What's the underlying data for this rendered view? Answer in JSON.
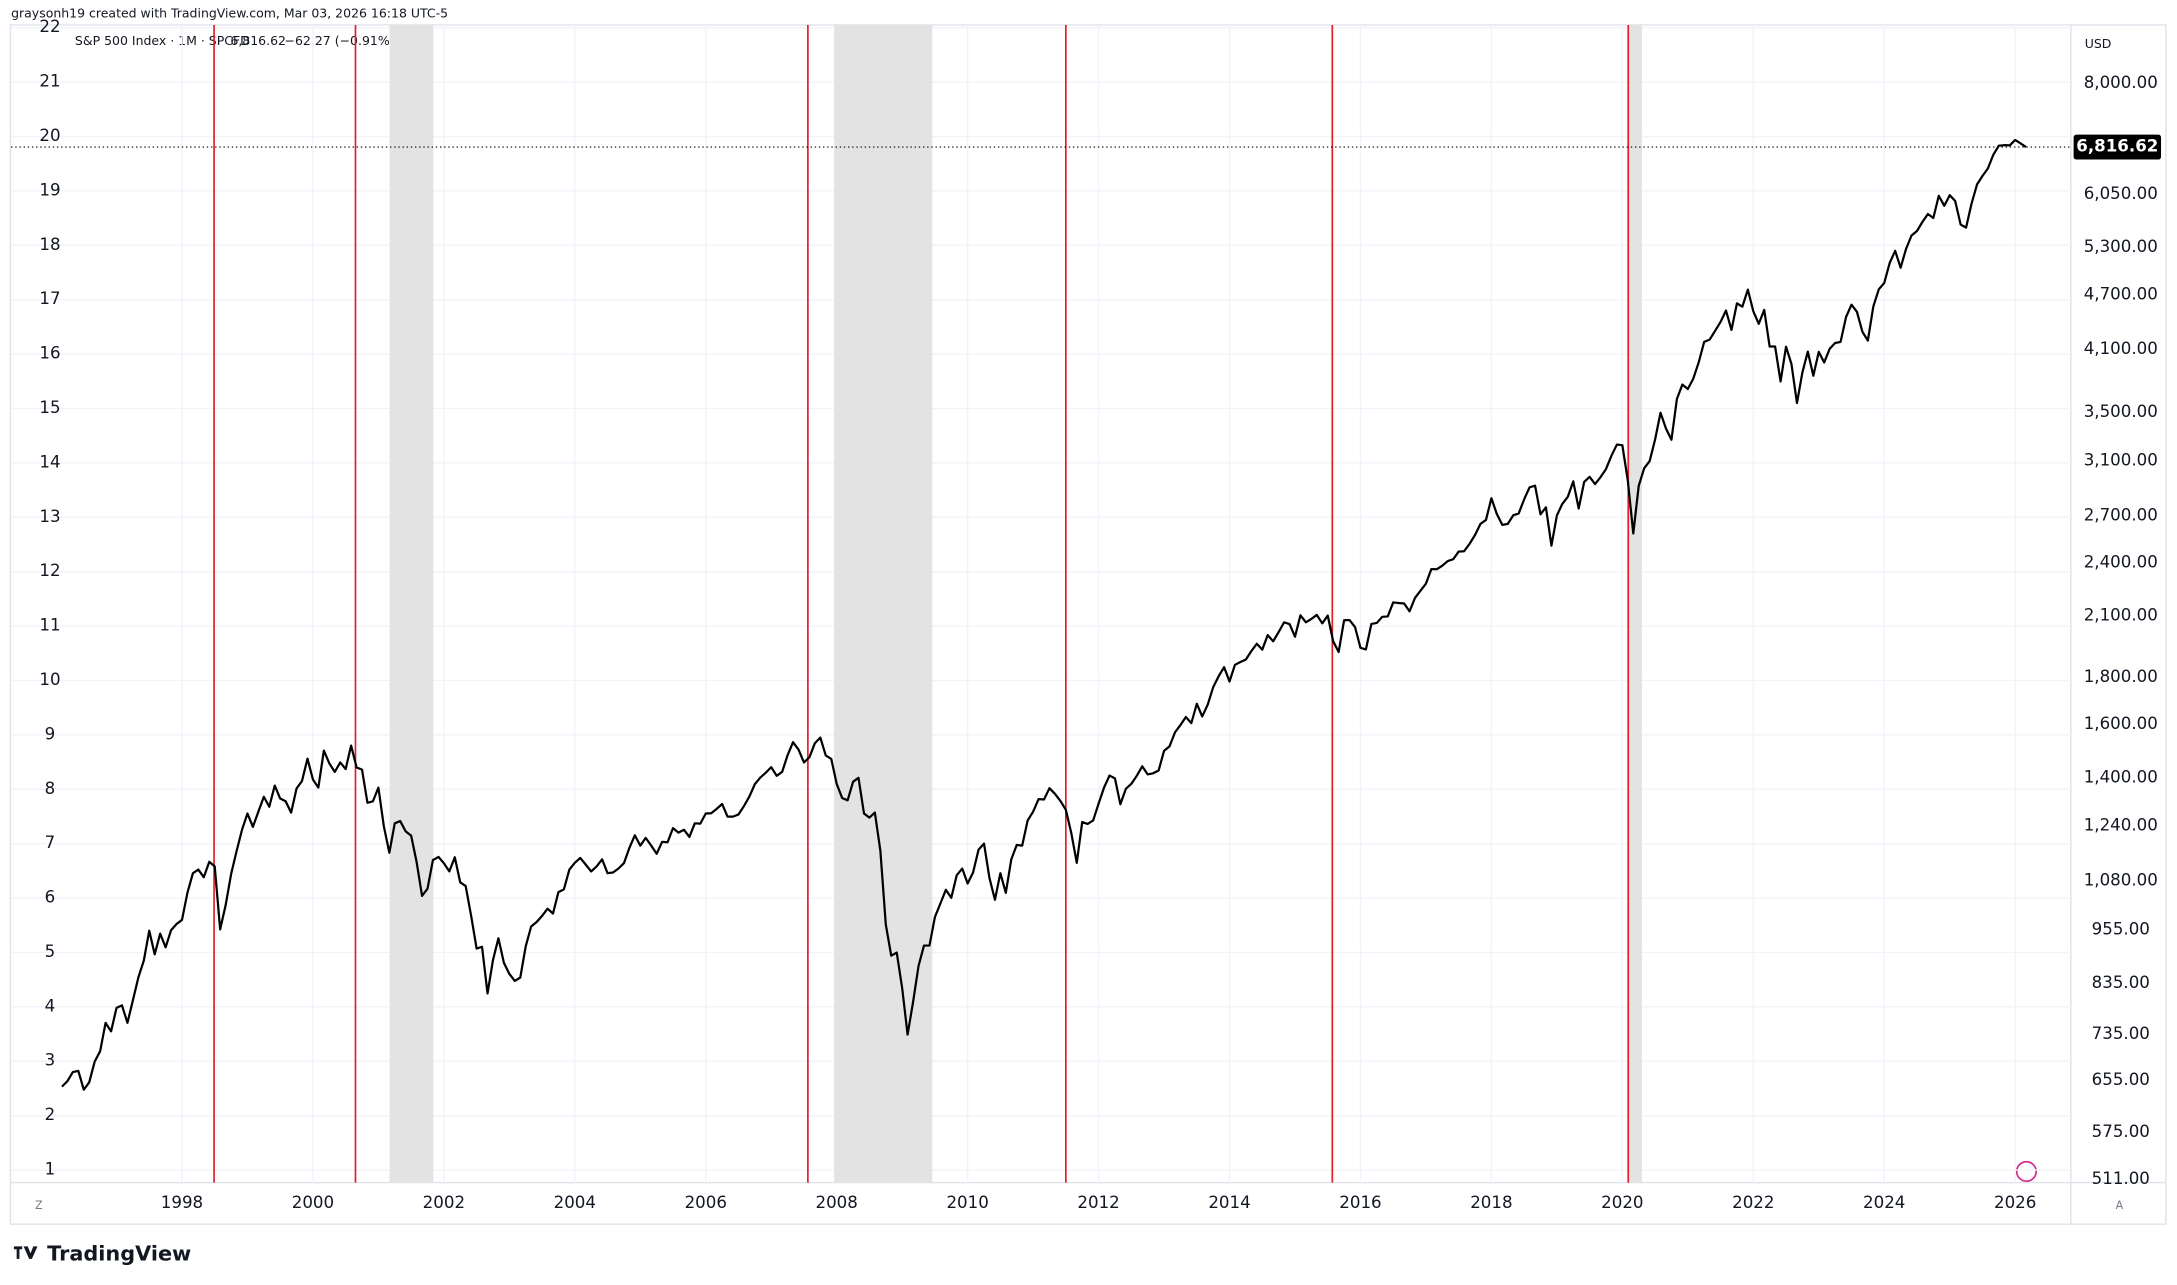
{
  "header": "graysonh19 created with TradingView.com, Mar 03, 2026 16:18 UTC-5",
  "legend": {
    "symbol": "S&P 500 Index · 1M · SPCFD",
    "price": "6,816.62",
    "change": "−62.27 (−0.91%)"
  },
  "currency": "USD",
  "brand": "TradingView",
  "chart_data": {
    "type": "line",
    "xlim": [
      1995.39,
      2026.85
    ],
    "xticks": [
      1998,
      2000,
      2002,
      2004,
      2006,
      2008,
      2010,
      2012,
      2014,
      2016,
      2018,
      2020,
      2022,
      2024,
      2026
    ],
    "ylim": [
      0.77,
      22.05
    ],
    "yticks": [
      1,
      2,
      3,
      4,
      5,
      6,
      7,
      8,
      9,
      10,
      11,
      12,
      13,
      14,
      15,
      16,
      17,
      18,
      19,
      20,
      21,
      22
    ],
    "y2lim": [
      507,
      9260
    ],
    "log_scale": true,
    "grid": true,
    "y2ticks": [
      {
        "value": 511,
        "label": "511.00"
      },
      {
        "value": 575,
        "label": "575.00"
      },
      {
        "value": 655,
        "label": "655.00"
      },
      {
        "value": 735,
        "label": "735.00"
      },
      {
        "value": 835,
        "label": "835.00"
      },
      {
        "value": 955,
        "label": "955.00"
      },
      {
        "value": 1080,
        "label": "1,080.00"
      },
      {
        "value": 1240,
        "label": "1,240.00"
      },
      {
        "value": 1400,
        "label": "1,400.00"
      },
      {
        "value": 1600,
        "label": "1,600.00"
      },
      {
        "value": 1800,
        "label": "1,800.00"
      },
      {
        "value": 2100,
        "label": "2,100.00"
      },
      {
        "value": 2400,
        "label": "2,400.00"
      },
      {
        "value": 2700,
        "label": "2,700.00"
      },
      {
        "value": 3100,
        "label": "3,100.00"
      },
      {
        "value": 3500,
        "label": "3,500.00"
      },
      {
        "value": 4100,
        "label": "4,100.00"
      },
      {
        "value": 4700,
        "label": "4,700.00"
      },
      {
        "value": 5300,
        "label": "5,300.00"
      },
      {
        "value": 6050,
        "label": "6,050.00"
      },
      {
        "value": 8000,
        "label": "8,000.00"
      }
    ],
    "price_line": {
      "value": 6816.62,
      "label": "6,816.62",
      "color": "#000000"
    },
    "vlines": {
      "color": "#e31b23",
      "x": [
        1998.49,
        2000.65,
        2007.56,
        2011.5,
        2015.57,
        2020.09
      ]
    },
    "shaded": {
      "color": "#e3e3e3",
      "spans": [
        [
          2001.17,
          2001.84
        ],
        [
          2007.96,
          2009.46
        ],
        [
          2020.09,
          2020.3
        ]
      ]
    },
    "x": [
      1996.167,
      1996.25,
      1996.333,
      1996.417,
      1996.5,
      1996.583,
      1996.667,
      1996.75,
      1996.833,
      1996.917,
      1997,
      1997.083,
      1997.167,
      1997.25,
      1997.333,
      1997.417,
      1997.5,
      1997.583,
      1997.667,
      1997.75,
      1997.833,
      1997.917,
      1998,
      1998.083,
      1998.167,
      1998.25,
      1998.333,
      1998.417,
      1998.5,
      1998.583,
      1998.667,
      1998.75,
      1998.833,
      1998.917,
      1999,
      1999.083,
      1999.167,
      1999.25,
      1999.333,
      1999.417,
      1999.5,
      1999.583,
      1999.667,
      1999.75,
      1999.833,
      1999.917,
      2000,
      2000.083,
      2000.167,
      2000.25,
      2000.333,
      2000.417,
      2000.5,
      2000.583,
      2000.667,
      2000.75,
      2000.833,
      2000.917,
      2001,
      2001.083,
      2001.167,
      2001.25,
      2001.333,
      2001.417,
      2001.5,
      2001.583,
      2001.667,
      2001.75,
      2001.833,
      2001.917,
      2002,
      2002.083,
      2002.167,
      2002.25,
      2002.333,
      2002.417,
      2002.5,
      2002.583,
      2002.667,
      2002.75,
      2002.833,
      2002.917,
      2003,
      2003.083,
      2003.167,
      2003.25,
      2003.333,
      2003.417,
      2003.5,
      2003.583,
      2003.667,
      2003.75,
      2003.833,
      2003.917,
      2004,
      2004.083,
      2004.167,
      2004.25,
      2004.333,
      2004.417,
      2004.5,
      2004.583,
      2004.667,
      2004.75,
      2004.833,
      2004.917,
      2005,
      2005.083,
      2005.167,
      2005.25,
      2005.333,
      2005.417,
      2005.5,
      2005.583,
      2005.667,
      2005.75,
      2005.833,
      2005.917,
      2006,
      2006.083,
      2006.167,
      2006.25,
      2006.333,
      2006.417,
      2006.5,
      2006.583,
      2006.667,
      2006.75,
      2006.833,
      2006.917,
      2007,
      2007.083,
      2007.167,
      2007.25,
      2007.333,
      2007.417,
      2007.5,
      2007.583,
      2007.667,
      2007.75,
      2007.833,
      2007.917,
      2008,
      2008.083,
      2008.167,
      2008.25,
      2008.333,
      2008.417,
      2008.5,
      2008.583,
      2008.667,
      2008.75,
      2008.833,
      2008.917,
      2009,
      2009.083,
      2009.167,
      2009.25,
      2009.333,
      2009.417,
      2009.5,
      2009.583,
      2009.667,
      2009.75,
      2009.833,
      2009.917,
      2010,
      2010.083,
      2010.167,
      2010.25,
      2010.333,
      2010.417,
      2010.5,
      2010.583,
      2010.667,
      2010.75,
      2010.833,
      2010.917,
      2011,
      2011.083,
      2011.167,
      2011.25,
      2011.333,
      2011.417,
      2011.5,
      2011.583,
      2011.667,
      2011.75,
      2011.833,
      2011.917,
      2012,
      2012.083,
      2012.167,
      2012.25,
      2012.333,
      2012.417,
      2012.5,
      2012.583,
      2012.667,
      2012.75,
      2012.833,
      2012.917,
      2013,
      2013.083,
      2013.167,
      2013.25,
      2013.333,
      2013.417,
      2013.5,
      2013.583,
      2013.667,
      2013.75,
      2013.833,
      2013.917,
      2014,
      2014.083,
      2014.167,
      2014.25,
      2014.333,
      2014.417,
      2014.5,
      2014.583,
      2014.667,
      2014.75,
      2014.833,
      2014.917,
      2015,
      2015.083,
      2015.167,
      2015.25,
      2015.333,
      2015.417,
      2015.5,
      2015.583,
      2015.667,
      2015.75,
      2015.833,
      2015.917,
      2016,
      2016.083,
      2016.167,
      2016.25,
      2016.333,
      2016.417,
      2016.5,
      2016.583,
      2016.667,
      2016.75,
      2016.833,
      2016.917,
      2017,
      2017.083,
      2017.167,
      2017.25,
      2017.333,
      2017.417,
      2017.5,
      2017.583,
      2017.667,
      2017.75,
      2017.833,
      2017.917,
      2018,
      2018.083,
      2018.167,
      2018.25,
      2018.333,
      2018.417,
      2018.5,
      2018.583,
      2018.667,
      2018.75,
      2018.833,
      2018.917,
      2019,
      2019.083,
      2019.167,
      2019.25,
      2019.333,
      2019.417,
      2019.5,
      2019.583,
      2019.667,
      2019.75,
      2019.833,
      2019.917,
      2020,
      2020.083,
      2020.167,
      2020.25,
      2020.333,
      2020.417,
      2020.5,
      2020.583,
      2020.667,
      2020.75,
      2020.833,
      2020.917,
      2021,
      2021.083,
      2021.167,
      2021.25,
      2021.333,
      2021.417,
      2021.5,
      2021.583,
      2021.667,
      2021.75,
      2021.833,
      2021.917,
      2022,
      2022.083,
      2022.167,
      2022.25,
      2022.333,
      2022.417,
      2022.5,
      2022.583,
      2022.667,
      2022.75,
      2022.833,
      2022.917,
      2023,
      2023.083,
      2023.167,
      2023.25,
      2023.333,
      2023.417,
      2023.5,
      2023.583,
      2023.667,
      2023.75,
      2023.833,
      2023.917,
      2024,
      2024.083,
      2024.167,
      2024.25,
      2024.333,
      2024.417,
      2024.5,
      2024.583,
      2024.667,
      2024.75,
      2024.833,
      2024.917,
      2025,
      2025.083,
      2025.167,
      2025.25,
      2025.333,
      2025.417,
      2025.5,
      2025.583,
      2025.667,
      2025.75,
      2025.833,
      2025.917,
      2026,
      2026.083,
      2026.167
    ],
    "series": [
      {
        "name": "S&P 500 Index",
        "color": "#000000",
        "axis": "y2",
        "values": [
          645,
          654,
          669,
          671,
          640,
          652,
          687,
          705,
          757,
          741,
          786,
          791,
          757,
          801,
          848,
          885,
          954,
          899,
          947,
          915,
          955,
          970,
          980,
          1049,
          1102,
          1112,
          1091,
          1134,
          1121,
          957,
          1017,
          1099,
          1164,
          1229,
          1280,
          1238,
          1286,
          1335,
          1302,
          1373,
          1329,
          1320,
          1283,
          1363,
          1389,
          1469,
          1394,
          1366,
          1499,
          1452,
          1421,
          1455,
          1431,
          1518,
          1437,
          1429,
          1315,
          1320,
          1366,
          1240,
          1160,
          1249,
          1256,
          1224,
          1211,
          1134,
          1041,
          1060,
          1139,
          1148,
          1130,
          1107,
          1147,
          1077,
          1067,
          990,
          912,
          916,
          815,
          886,
          936,
          880,
          856,
          841,
          848,
          917,
          964,
          975,
          990,
          1008,
          996,
          1051,
          1058,
          1112,
          1131,
          1145,
          1126,
          1107,
          1121,
          1141,
          1102,
          1104,
          1115,
          1130,
          1174,
          1212,
          1181,
          1204,
          1181,
          1157,
          1192,
          1191,
          1234,
          1220,
          1229,
          1207,
          1249,
          1248,
          1280,
          1281,
          1295,
          1311,
          1270,
          1270,
          1277,
          1304,
          1336,
          1378,
          1401,
          1418,
          1438,
          1407,
          1421,
          1482,
          1531,
          1503,
          1455,
          1474,
          1527,
          1549,
          1481,
          1468,
          1379,
          1331,
          1323,
          1386,
          1400,
          1280,
          1267,
          1283,
          1166,
          969,
          896,
          903,
          826,
          735,
          798,
          873,
          919,
          919,
          987,
          1021,
          1057,
          1036,
          1096,
          1115,
          1074,
          1104,
          1169,
          1187,
          1089,
          1031,
          1102,
          1049,
          1141,
          1183,
          1181,
          1258,
          1286,
          1327,
          1326,
          1364,
          1345,
          1321,
          1292,
          1219,
          1131,
          1253,
          1247,
          1258,
          1312,
          1366,
          1408,
          1398,
          1310,
          1362,
          1379,
          1407,
          1441,
          1412,
          1416,
          1426,
          1498,
          1515,
          1569,
          1598,
          1631,
          1606,
          1686,
          1633,
          1682,
          1757,
          1806,
          1848,
          1783,
          1859,
          1872,
          1884,
          1924,
          1960,
          1931,
          2003,
          1972,
          2018,
          2068,
          2059,
          1995,
          2105,
          2068,
          2086,
          2107,
          2063,
          2104,
          1972,
          1920,
          2079,
          2080,
          2044,
          1940,
          1932,
          2060,
          2065,
          2097,
          2099,
          2174,
          2171,
          2168,
          2126,
          2199,
          2239,
          2279,
          2364,
          2363,
          2384,
          2412,
          2423,
          2470,
          2472,
          2519,
          2575,
          2648,
          2674,
          2824,
          2714,
          2641,
          2648,
          2705,
          2718,
          2816,
          2902,
          2914,
          2712,
          2760,
          2507,
          2704,
          2784,
          2834,
          2946,
          2752,
          2942,
          2980,
          2926,
          2977,
          3038,
          3141,
          3231,
          3226,
          2954,
          2585,
          2912,
          3044,
          3100,
          3271,
          3500,
          3363,
          3270,
          3622,
          3756,
          3714,
          3811,
          3973,
          4181,
          4204,
          4298,
          4395,
          4523,
          4308,
          4605,
          4567,
          4766,
          4516,
          4374,
          4530,
          4132,
          4132,
          3785,
          4130,
          3955,
          3586,
          3872,
          4080,
          3840,
          4077,
          3970,
          4109,
          4169,
          4180,
          4450,
          4589,
          4508,
          4288,
          4194,
          4568,
          4770,
          4846,
          5096,
          5254,
          5036,
          5278,
          5460,
          5522,
          5648,
          5762,
          5705,
          6032,
          5882,
          6041,
          5955,
          5612,
          5569,
          5912,
          6205,
          6339,
          6460,
          6688,
          6840,
          6849,
          6845,
          6939,
          6879,
          6816.62
        ]
      }
    ]
  }
}
